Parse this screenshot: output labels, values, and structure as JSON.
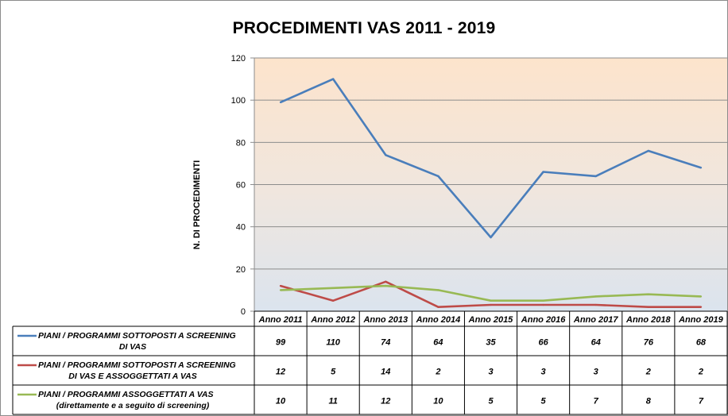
{
  "chart_data": {
    "type": "line",
    "title": "PROCEDIMENTI VAS 2011 - 2019",
    "ylabel": "N. DI PROCEDIMENTI",
    "xlabel": "",
    "ylim": [
      0,
      120
    ],
    "yticks": [
      0,
      20,
      40,
      60,
      80,
      100,
      120
    ],
    "grid": true,
    "legend_placement": "data-table",
    "categories": [
      "Anno 2011",
      "Anno 2012",
      "Anno 2013",
      "Anno 2014",
      "Anno 2015",
      "Anno 2016",
      "Anno 2017",
      "Anno 2018",
      "Anno 2019"
    ],
    "series": [
      {
        "name": "PIANI / PROGRAMMI SOTTOPOSTI A SCREENING DI VAS",
        "name_lines": [
          "PIANI / PROGRAMMI SOTTOPOSTI A SCREENING",
          "DI VAS"
        ],
        "color": "#4a7ebb",
        "values": [
          99,
          110,
          74,
          64,
          35,
          66,
          64,
          76,
          68
        ]
      },
      {
        "name": "PIANI / PROGRAMMI SOTTOPOSTI A SCREENING DI VAS E ASSOGGETTATI A VAS",
        "name_lines": [
          "PIANI / PROGRAMMI SOTTOPOSTI A SCREENING",
          "DI VAS E ASSOGGETTATI A VAS"
        ],
        "color": "#be4b48",
        "values": [
          12,
          5,
          14,
          2,
          3,
          3,
          3,
          2,
          2
        ]
      },
      {
        "name": "PIANI / PROGRAMMI ASSOGGETTATI A VAS (direttamente e a seguito di screening)",
        "name_lines": [
          "PIANI / PROGRAMMI ASSOGGETTATI A VAS",
          "(direttamente e a seguito di screening)"
        ],
        "color": "#98b954",
        "values": [
          10,
          11,
          12,
          10,
          5,
          5,
          7,
          8,
          7
        ]
      }
    ]
  }
}
